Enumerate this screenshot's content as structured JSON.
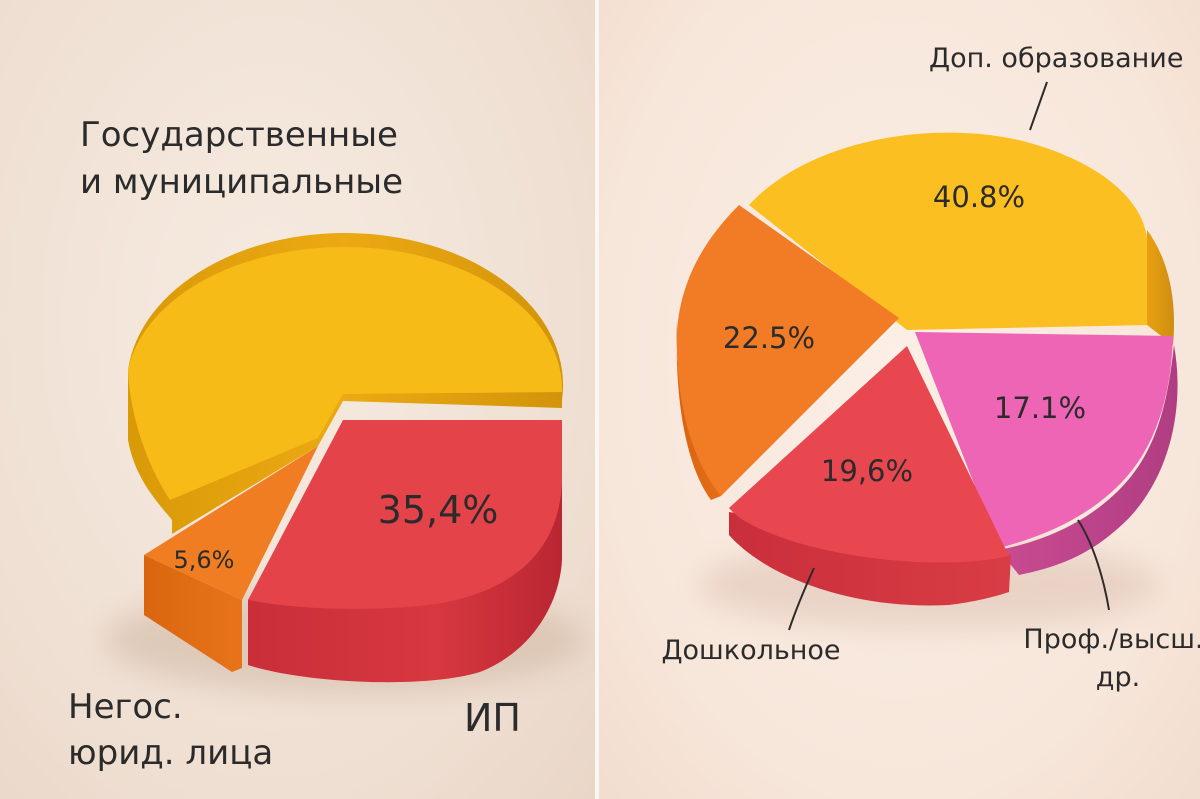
{
  "chart_data": [
    {
      "type": "pie",
      "slices": [
        {
          "label": "Государственные и муниципальные",
          "value": 59.0,
          "value_label": "",
          "color": "#f7bb17"
        },
        {
          "label": "ИП",
          "value": 35.4,
          "value_label": "35,4%",
          "color": "#e5434a"
        },
        {
          "label": "Негос. юрид. лица",
          "value": 5.6,
          "value_label": "5,6%",
          "color": "#f07d21"
        }
      ],
      "label_lines": {
        "gov": [
          "Государственные",
          "и муниципальные"
        ],
        "ip": [
          "ИП"
        ],
        "negos": [
          "Негос.",
          "юрид. лица"
        ]
      }
    },
    {
      "type": "pie",
      "slices": [
        {
          "label": "Доп. образование",
          "value": 40.8,
          "value_label": "40.8%",
          "color": "#fcbf22"
        },
        {
          "label": "Проф./высш./др.",
          "value": 17.1,
          "value_label": "17.1%",
          "color": "#ee65b6"
        },
        {
          "label": "Дошкольное",
          "value": 19.6,
          "value_label": "19,6%",
          "color": "#e8474f"
        },
        {
          "label": "",
          "value": 22.5,
          "value_label": "22.5%",
          "color": "#f27b25"
        }
      ],
      "label_lines": {
        "dop": [
          "Доп. образование"
        ],
        "prof": [
          "Проф./высш./",
          "др."
        ],
        "dosh": [
          "Дошкольное"
        ]
      }
    }
  ]
}
